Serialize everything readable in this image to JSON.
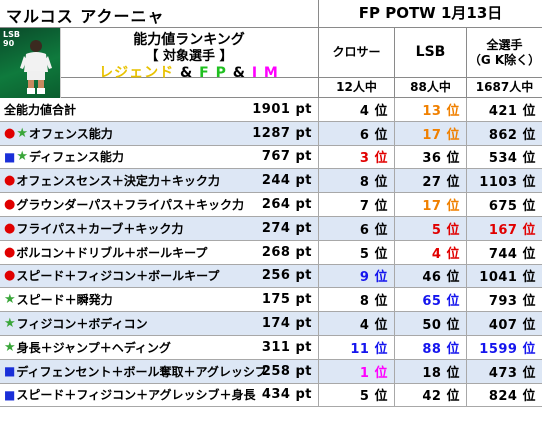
{
  "header": {
    "player_name": "マルコス アクーニャ",
    "event_title": "FP POTW 1月13日",
    "avatar": {
      "position": "LSB",
      "rating": "90"
    },
    "title_line1": "能力値ランキング",
    "title_line2": "【 対象選手 】",
    "title_line3": {
      "part1": "レジェンド",
      "sep1": " & ",
      "part2": "F P",
      "sep2": " & ",
      "part3": "I M"
    },
    "columns": [
      {
        "label": "クロサー",
        "count": "12人中"
      },
      {
        "label": "LSB",
        "count": "88人中"
      },
      {
        "label": "全選手\n（G K除く）",
        "count": "1687人中"
      }
    ]
  },
  "colors": {
    "top_rank": "#e10000",
    "orange_rank": "#f08000",
    "blue_rank": "#1515ee",
    "magenta_rank": "#ff00ff",
    "row_shade": "#dde7f5"
  },
  "rows": [
    {
      "marks": [],
      "label": "全能力値合計",
      "pt": "1901 pt",
      "ranks": [
        {
          "v": "4 位",
          "c": "normal"
        },
        {
          "v": "13 位",
          "c": "orange"
        },
        {
          "v": "421 位",
          "c": "normal"
        }
      ]
    },
    {
      "marks": [
        "dot",
        "star"
      ],
      "label": "オフェンス能力",
      "pt": "1287 pt",
      "ranks": [
        {
          "v": "6 位",
          "c": "normal"
        },
        {
          "v": "17 位",
          "c": "orange"
        },
        {
          "v": "862 位",
          "c": "normal"
        }
      ]
    },
    {
      "marks": [
        "sq",
        "star"
      ],
      "label": "ディフェンス能力",
      "pt": "767 pt",
      "ranks": [
        {
          "v": "3 位",
          "c": "top"
        },
        {
          "v": "36 位",
          "c": "normal"
        },
        {
          "v": "534 位",
          "c": "normal"
        }
      ]
    },
    {
      "marks": [
        "dot"
      ],
      "label": "オフェンスセンス＋決定力＋キック力",
      "pt": "244 pt",
      "ranks": [
        {
          "v": "8 位",
          "c": "normal"
        },
        {
          "v": "27 位",
          "c": "normal"
        },
        {
          "v": "1103 位",
          "c": "normal"
        }
      ]
    },
    {
      "marks": [
        "dot"
      ],
      "label": "グラウンダーパス＋フライパス＋キック力",
      "pt": "264 pt",
      "ranks": [
        {
          "v": "7 位",
          "c": "normal"
        },
        {
          "v": "17 位",
          "c": "orange"
        },
        {
          "v": "675 位",
          "c": "normal"
        }
      ]
    },
    {
      "marks": [
        "dot"
      ],
      "label": "フライパス＋カーブ＋キック力",
      "pt": "274 pt",
      "ranks": [
        {
          "v": "6 位",
          "c": "normal"
        },
        {
          "v": "5 位",
          "c": "top"
        },
        {
          "v": "167 位",
          "c": "top"
        }
      ]
    },
    {
      "marks": [
        "dot"
      ],
      "label": "ボルコン＋ドリブル＋ボールキープ",
      "pt": "268 pt",
      "ranks": [
        {
          "v": "5 位",
          "c": "normal"
        },
        {
          "v": "4 位",
          "c": "top"
        },
        {
          "v": "744 位",
          "c": "normal"
        }
      ]
    },
    {
      "marks": [
        "dot"
      ],
      "label": "スピード＋フィジコン＋ボールキープ",
      "pt": "256 pt",
      "ranks": [
        {
          "v": "9 位",
          "c": "blue"
        },
        {
          "v": "46 位",
          "c": "normal"
        },
        {
          "v": "1041 位",
          "c": "normal"
        }
      ]
    },
    {
      "marks": [
        "star"
      ],
      "label": "スピード＋瞬発力",
      "pt": "175 pt",
      "ranks": [
        {
          "v": "8 位",
          "c": "normal"
        },
        {
          "v": "65 位",
          "c": "blue"
        },
        {
          "v": "793 位",
          "c": "normal"
        }
      ]
    },
    {
      "marks": [
        "star"
      ],
      "label": "フィジコン＋ボディコン",
      "pt": "174 pt",
      "ranks": [
        {
          "v": "4 位",
          "c": "normal"
        },
        {
          "v": "50 位",
          "c": "normal"
        },
        {
          "v": "407 位",
          "c": "normal"
        }
      ]
    },
    {
      "marks": [
        "star"
      ],
      "label": "身長＋ジャンプ＋ヘディング",
      "pt": "311 pt",
      "ranks": [
        {
          "v": "11 位",
          "c": "blue"
        },
        {
          "v": "88 位",
          "c": "blue"
        },
        {
          "v": "1599 位",
          "c": "blue"
        }
      ]
    },
    {
      "marks": [
        "sq"
      ],
      "label": "ディフェンセント＋ボール奪取＋アグレッシブ",
      "pt": "258 pt",
      "ranks": [
        {
          "v": "1 位",
          "c": "magenta"
        },
        {
          "v": "18 位",
          "c": "normal"
        },
        {
          "v": "473 位",
          "c": "normal"
        }
      ]
    },
    {
      "marks": [
        "sq"
      ],
      "label": "スピード＋フィジコン＋アグレッシブ＋身長",
      "pt": "434 pt",
      "ranks": [
        {
          "v": "5 位",
          "c": "normal"
        },
        {
          "v": "42 位",
          "c": "normal"
        },
        {
          "v": "824 位",
          "c": "normal"
        }
      ]
    }
  ]
}
